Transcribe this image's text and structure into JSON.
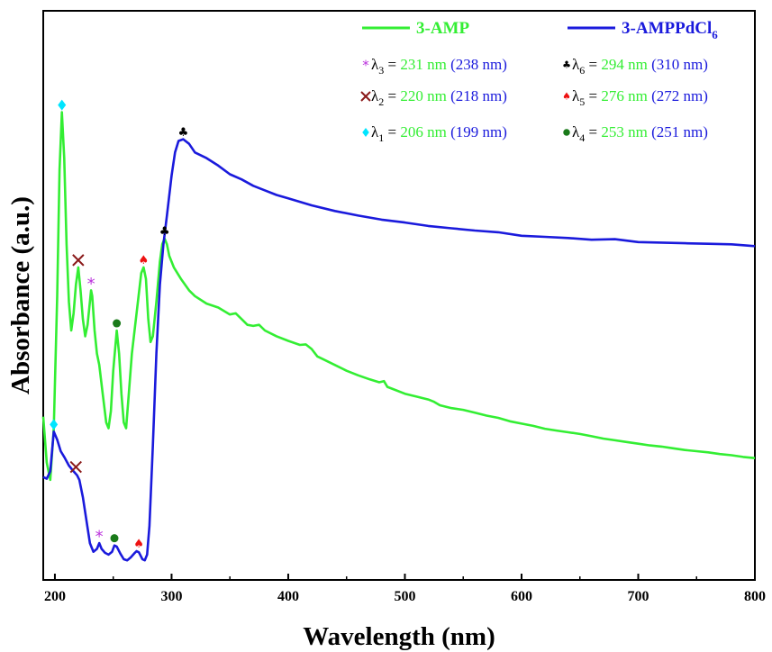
{
  "chart_data": {
    "type": "line",
    "title": "",
    "xlabel": "Wavelength (nm)",
    "ylabel": "Absorbance (a.u.)",
    "xlim": [
      190,
      800
    ],
    "xticks": [
      200,
      300,
      400,
      500,
      600,
      700,
      800
    ],
    "y_units": "arbitrary (no y tick labels)",
    "grid": false,
    "legend": "top-right",
    "colors": {
      "green": "#33ee33",
      "blue": "#1a1adc",
      "cyan": "#00e5ff",
      "purple": "#bb33dd",
      "brown": "#8b1a1a",
      "darkgreen": "#1a7a1a",
      "red": "#ee1111",
      "black": "#000000"
    },
    "series": [
      {
        "name": "3-AMP",
        "color": "#33ee33",
        "points": [
          [
            190,
            0.27
          ],
          [
            193,
            0.19
          ],
          [
            196,
            0.16
          ],
          [
            199,
            0.25
          ],
          [
            202,
            0.48
          ],
          [
            204,
            0.7
          ],
          [
            206,
            0.8
          ],
          [
            208,
            0.72
          ],
          [
            210,
            0.57
          ],
          [
            212,
            0.47
          ],
          [
            214,
            0.42
          ],
          [
            216,
            0.45
          ],
          [
            218,
            0.5
          ],
          [
            220,
            0.53
          ],
          [
            222,
            0.49
          ],
          [
            224,
            0.44
          ],
          [
            226,
            0.41
          ],
          [
            228,
            0.43
          ],
          [
            230,
            0.47
          ],
          [
            231,
            0.49
          ],
          [
            232,
            0.48
          ],
          [
            234,
            0.42
          ],
          [
            236,
            0.38
          ],
          [
            238,
            0.36
          ],
          [
            241,
            0.31
          ],
          [
            244,
            0.26
          ],
          [
            246,
            0.25
          ],
          [
            248,
            0.28
          ],
          [
            250,
            0.35
          ],
          [
            253,
            0.42
          ],
          [
            255,
            0.38
          ],
          [
            257,
            0.31
          ],
          [
            259,
            0.26
          ],
          [
            261,
            0.25
          ],
          [
            263,
            0.3
          ],
          [
            266,
            0.38
          ],
          [
            270,
            0.45
          ],
          [
            274,
            0.52
          ],
          [
            276,
            0.53
          ],
          [
            278,
            0.51
          ],
          [
            280,
            0.44
          ],
          [
            282,
            0.4
          ],
          [
            284,
            0.41
          ],
          [
            287,
            0.47
          ],
          [
            290,
            0.54
          ],
          [
            292,
            0.57
          ],
          [
            294,
            0.58
          ],
          [
            296,
            0.57
          ],
          [
            298,
            0.55
          ],
          [
            302,
            0.53
          ],
          [
            308,
            0.51
          ],
          [
            315,
            0.49
          ],
          [
            320,
            0.48
          ],
          [
            330,
            0.467
          ],
          [
            340,
            0.46
          ],
          [
            350,
            0.448
          ],
          [
            355,
            0.45
          ],
          [
            360,
            0.44
          ],
          [
            365,
            0.43
          ],
          [
            370,
            0.428
          ],
          [
            375,
            0.43
          ],
          [
            380,
            0.42
          ],
          [
            390,
            0.41
          ],
          [
            400,
            0.402
          ],
          [
            410,
            0.395
          ],
          [
            415,
            0.396
          ],
          [
            420,
            0.388
          ],
          [
            425,
            0.375
          ],
          [
            430,
            0.37
          ],
          [
            440,
            0.36
          ],
          [
            450,
            0.35
          ],
          [
            460,
            0.342
          ],
          [
            470,
            0.335
          ],
          [
            478,
            0.33
          ],
          [
            482,
            0.332
          ],
          [
            485,
            0.322
          ],
          [
            490,
            0.318
          ],
          [
            500,
            0.31
          ],
          [
            510,
            0.305
          ],
          [
            520,
            0.3
          ],
          [
            525,
            0.296
          ],
          [
            530,
            0.29
          ],
          [
            540,
            0.285
          ],
          [
            550,
            0.282
          ],
          [
            560,
            0.277
          ],
          [
            570,
            0.272
          ],
          [
            580,
            0.268
          ],
          [
            590,
            0.262
          ],
          [
            600,
            0.258
          ],
          [
            610,
            0.254
          ],
          [
            620,
            0.249
          ],
          [
            630,
            0.246
          ],
          [
            640,
            0.243
          ],
          [
            650,
            0.24
          ],
          [
            660,
            0.236
          ],
          [
            670,
            0.232
          ],
          [
            680,
            0.229
          ],
          [
            690,
            0.226
          ],
          [
            700,
            0.223
          ],
          [
            710,
            0.22
          ],
          [
            720,
            0.218
          ],
          [
            730,
            0.215
          ],
          [
            740,
            0.212
          ],
          [
            750,
            0.21
          ],
          [
            760,
            0.208
          ],
          [
            770,
            0.205
          ],
          [
            780,
            0.203
          ],
          [
            790,
            0.2
          ],
          [
            800,
            0.198
          ]
        ]
      },
      {
        "name": "3-AMPPdCl6",
        "color": "#1a1adc",
        "points": [
          [
            190,
            0.165
          ],
          [
            193,
            0.162
          ],
          [
            196,
            0.175
          ],
          [
            199,
            0.244
          ],
          [
            202,
            0.23
          ],
          [
            205,
            0.21
          ],
          [
            208,
            0.2
          ],
          [
            212,
            0.185
          ],
          [
            216,
            0.175
          ],
          [
            219,
            0.168
          ],
          [
            221,
            0.16
          ],
          [
            224,
            0.13
          ],
          [
            227,
            0.09
          ],
          [
            230,
            0.05
          ],
          [
            233,
            0.035
          ],
          [
            236,
            0.04
          ],
          [
            238,
            0.05
          ],
          [
            240,
            0.04
          ],
          [
            243,
            0.033
          ],
          [
            246,
            0.03
          ],
          [
            249,
            0.035
          ],
          [
            251,
            0.046
          ],
          [
            253,
            0.044
          ],
          [
            256,
            0.032
          ],
          [
            259,
            0.022
          ],
          [
            262,
            0.02
          ],
          [
            265,
            0.025
          ],
          [
            268,
            0.032
          ],
          [
            270,
            0.036
          ],
          [
            272,
            0.034
          ],
          [
            275,
            0.022
          ],
          [
            277,
            0.02
          ],
          [
            279,
            0.03
          ],
          [
            281,
            0.08
          ],
          [
            284,
            0.22
          ],
          [
            287,
            0.38
          ],
          [
            290,
            0.5
          ],
          [
            293,
            0.57
          ],
          [
            296,
            0.62
          ],
          [
            300,
            0.69
          ],
          [
            303,
            0.73
          ],
          [
            306,
            0.75
          ],
          [
            310,
            0.753
          ],
          [
            315,
            0.745
          ],
          [
            320,
            0.73
          ],
          [
            330,
            0.72
          ],
          [
            340,
            0.707
          ],
          [
            350,
            0.692
          ],
          [
            360,
            0.683
          ],
          [
            370,
            0.672
          ],
          [
            380,
            0.664
          ],
          [
            390,
            0.656
          ],
          [
            400,
            0.65
          ],
          [
            420,
            0.638
          ],
          [
            440,
            0.628
          ],
          [
            460,
            0.62
          ],
          [
            480,
            0.613
          ],
          [
            500,
            0.608
          ],
          [
            520,
            0.602
          ],
          [
            540,
            0.598
          ],
          [
            560,
            0.594
          ],
          [
            580,
            0.591
          ],
          [
            600,
            0.585
          ],
          [
            620,
            0.583
          ],
          [
            640,
            0.581
          ],
          [
            660,
            0.578
          ],
          [
            680,
            0.579
          ],
          [
            700,
            0.574
          ],
          [
            720,
            0.573
          ],
          [
            740,
            0.572
          ],
          [
            760,
            0.571
          ],
          [
            780,
            0.57
          ],
          [
            800,
            0.567
          ]
        ]
      }
    ],
    "peaks_3AMP": [
      {
        "label": "λ1",
        "x": 206,
        "y": 0.8,
        "symbol": "diamond",
        "color": "#00e5ff"
      },
      {
        "label": "λ2",
        "x": 220,
        "y": 0.53,
        "symbol": "x",
        "color": "#8b1a1a"
      },
      {
        "label": "λ3",
        "x": 231,
        "y": 0.49,
        "symbol": "star",
        "color": "#bb33dd"
      },
      {
        "label": "λ4",
        "x": 253,
        "y": 0.42,
        "symbol": "dot",
        "color": "#1a7a1a"
      },
      {
        "label": "λ5",
        "x": 276,
        "y": 0.53,
        "symbol": "spade",
        "color": "#ee1111"
      },
      {
        "label": "λ6",
        "x": 294,
        "y": 0.58,
        "symbol": "club",
        "color": "#000000"
      }
    ],
    "peaks_3AMPPdCl6": [
      {
        "label": "λ1",
        "x": 199,
        "y": 0.244,
        "symbol": "diamond",
        "color": "#00e5ff"
      },
      {
        "label": "λ2",
        "x": 218,
        "y": 0.17,
        "symbol": "x",
        "color": "#8b1a1a"
      },
      {
        "label": "λ3",
        "x": 238,
        "y": 0.05,
        "symbol": "star",
        "color": "#bb33dd"
      },
      {
        "label": "λ4",
        "x": 251,
        "y": 0.046,
        "symbol": "dot",
        "color": "#1a7a1a"
      },
      {
        "label": "λ5",
        "x": 272,
        "y": 0.036,
        "symbol": "spade",
        "color": "#ee1111"
      },
      {
        "label": "λ6",
        "x": 310,
        "y": 0.753,
        "symbol": "club",
        "color": "#000000"
      }
    ],
    "annotations": [
      {
        "sym": "star",
        "color": "#bb33dd",
        "lam": "λ",
        "sub": "3",
        "eq": " = ",
        "v1": "231 nm",
        "v2": "(238 nm)"
      },
      {
        "sym": "x",
        "color": "#8b1a1a",
        "lam": "λ",
        "sub": "2",
        "eq": " = ",
        "v1": "220 nm",
        "v2": "(218 nm)"
      },
      {
        "sym": "diamond",
        "color": "#00e5ff",
        "lam": "λ",
        "sub": "1",
        "eq": " = ",
        "v1": "206 nm",
        "v2": "(199 nm)"
      },
      {
        "sym": "club",
        "color": "#000000",
        "lam": "λ",
        "sub": "6",
        "eq": " = ",
        "v1": "294 nm",
        "v2": "(310 nm)"
      },
      {
        "sym": "spade",
        "color": "#ee1111",
        "lam": "λ",
        "sub": "5",
        "eq": " = ",
        "v1": "276 nm",
        "v2": "(272 nm)"
      },
      {
        "sym": "dot",
        "color": "#1a7a1a",
        "lam": "λ",
        "sub": "4",
        "eq": " = ",
        "v1": "253 nm",
        "v2": "(251 nm)"
      }
    ],
    "legend_entries": [
      {
        "name": "3-AMP",
        "color": "#33ee33"
      },
      {
        "name_main": "3-AMPPdCl",
        "name_sub": "6",
        "color": "#1a1adc"
      }
    ]
  }
}
